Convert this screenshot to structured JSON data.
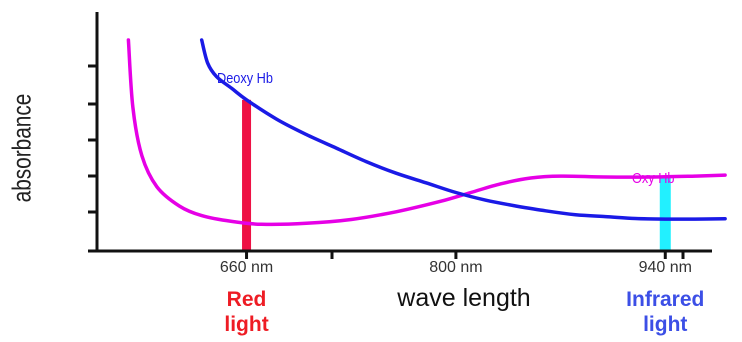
{
  "chart_data": {
    "type": "line",
    "title": "",
    "xlabel": "wave length",
    "ylabel": "absorbance",
    "xlim": [
      560,
      1000
    ],
    "ylim": [
      0,
      10
    ],
    "grid": false,
    "x_ticks": [
      {
        "x": 660,
        "label": "660 nm"
      },
      {
        "x": 800,
        "label": "800 nm"
      },
      {
        "x": 940,
        "label": "940 nm"
      }
    ],
    "y_tick_count": 6,
    "series": [
      {
        "name": "Deoxy Hb",
        "color": "#1a1ae6",
        "points": [
          [
            630,
            10.0
          ],
          [
            634,
            8.8
          ],
          [
            640,
            8.1
          ],
          [
            650,
            7.5
          ],
          [
            660,
            6.9
          ],
          [
            680,
            5.9
          ],
          [
            700,
            5.1
          ],
          [
            720,
            4.4
          ],
          [
            740,
            3.7
          ],
          [
            760,
            3.1
          ],
          [
            780,
            2.6
          ],
          [
            800,
            2.1
          ],
          [
            820,
            1.7
          ],
          [
            840,
            1.4
          ],
          [
            860,
            1.15
          ],
          [
            880,
            0.95
          ],
          [
            900,
            0.85
          ],
          [
            920,
            0.75
          ],
          [
            940,
            0.72
          ],
          [
            960,
            0.72
          ],
          [
            980,
            0.74
          ]
        ]
      },
      {
        "name": "Oxy Hb",
        "color": "#e600e6",
        "points": [
          [
            581,
            10.0
          ],
          [
            584,
            6.5
          ],
          [
            590,
            4.0
          ],
          [
            600,
            2.4
          ],
          [
            615,
            1.4
          ],
          [
            630,
            0.9
          ],
          [
            650,
            0.6
          ],
          [
            670,
            0.45
          ],
          [
            700,
            0.5
          ],
          [
            730,
            0.7
          ],
          [
            760,
            1.1
          ],
          [
            790,
            1.65
          ],
          [
            810,
            2.1
          ],
          [
            830,
            2.55
          ],
          [
            850,
            2.85
          ],
          [
            870,
            2.95
          ],
          [
            900,
            2.9
          ],
          [
            930,
            2.9
          ],
          [
            960,
            2.95
          ],
          [
            980,
            3.0
          ]
        ]
      }
    ],
    "bands": [
      {
        "x": 660,
        "label_line1": "Red",
        "label_line2": "light",
        "color": "#ee1144",
        "label_color": "#ee1c24"
      },
      {
        "x": 940,
        "label_line1": "Infrared",
        "label_line2": "light",
        "color": "#22f0ff",
        "label_color": "#3c4fe6"
      }
    ]
  }
}
